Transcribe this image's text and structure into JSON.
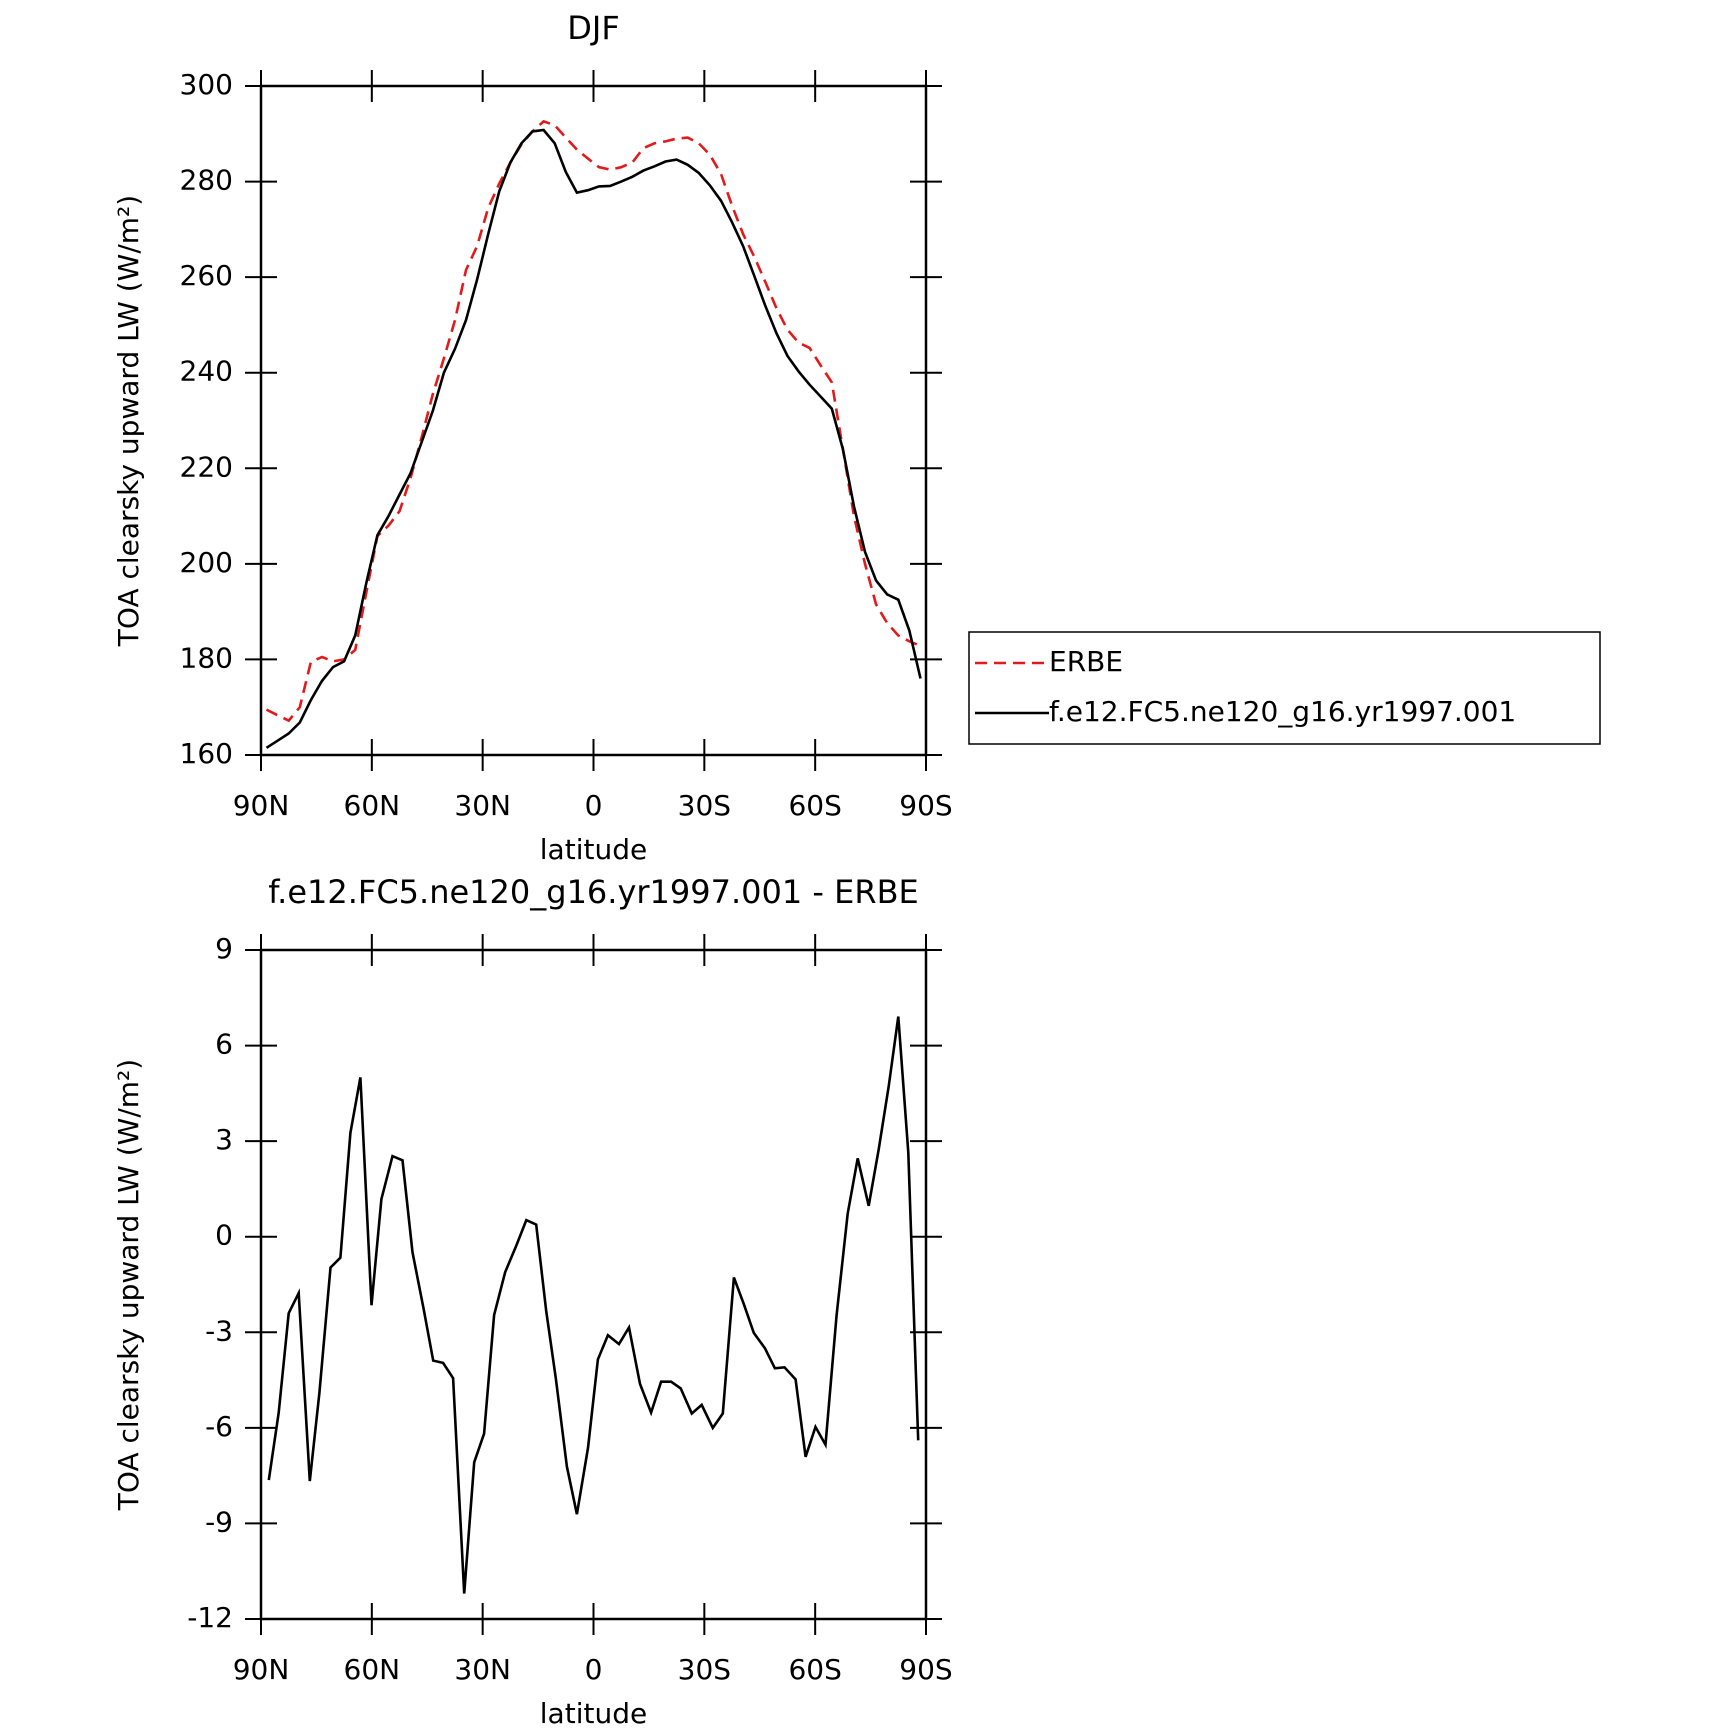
{
  "chart_data": [
    {
      "type": "line",
      "title": "DJF",
      "xlabel": "latitude",
      "ylabel": "TOA clearsky upward LW (W/m²)",
      "x": [
        88.5,
        85.5,
        82.5,
        79.5,
        76.5,
        73.5,
        70.5,
        67.5,
        64.5,
        61.5,
        58.5,
        55.5,
        52.5,
        49.5,
        46.5,
        43.5,
        40.5,
        37.5,
        34.5,
        31.5,
        28.5,
        25.5,
        22.5,
        19.5,
        16.5,
        13.5,
        10.5,
        7.5,
        4.5,
        1.5,
        -1.5,
        -4.5,
        -7.5,
        -10.5,
        -13.5,
        -16.5,
        -19.5,
        -22.5,
        -25.5,
        -28.5,
        -31.5,
        -34.5,
        -37.5,
        -40.5,
        -43.5,
        -46.5,
        -49.5,
        -52.5,
        -55.5,
        -58.5,
        -61.5,
        -64.5,
        -67.5,
        -70.5,
        -73.5,
        -76.5,
        -79.5,
        -82.5,
        -85.5,
        -88.5
      ],
      "series": [
        {
          "name": "ERBE",
          "color": "#e31a1c",
          "dashed": true,
          "values": [
            169.5,
            168.3,
            167.2,
            170,
            179.5,
            180.5,
            179.6,
            180,
            182,
            194,
            205.8,
            208,
            211,
            218,
            226.5,
            235.5,
            243,
            251,
            261.5,
            266.5,
            274.5,
            279.6,
            284,
            287.8,
            290.5,
            292.6,
            291.8,
            289.2,
            286.7,
            284.8,
            283,
            282.5,
            283,
            284,
            287,
            288,
            288.4,
            289,
            289.2,
            288,
            285.6,
            281.6,
            275,
            269,
            264.3,
            259,
            253.5,
            249,
            246.3,
            245.2,
            241.5,
            238,
            224,
            210,
            200,
            191.5,
            187.6,
            185,
            183.8,
            182.8
          ]
        },
        {
          "name": "f.e12.FC5.ne120_g16.yr1997.001",
          "color": "#000000",
          "dashed": false,
          "values": [
            161.5,
            163,
            164.5,
            166.8,
            171.5,
            175.5,
            178.4,
            179.6,
            185,
            196,
            206,
            210,
            214.5,
            219,
            225.5,
            232,
            240,
            245,
            251,
            259.5,
            269,
            278,
            284,
            288,
            290.5,
            290.8,
            288,
            282,
            277.7,
            278.2,
            279,
            279.1,
            280,
            281,
            282.3,
            283.2,
            284.2,
            284.6,
            283.5,
            281.8,
            279.2,
            276,
            271.5,
            266.5,
            260.3,
            254,
            248.3,
            243.5,
            240.3,
            237.5,
            235,
            232.5,
            224,
            212,
            202.5,
            196.5,
            193.6,
            192.5,
            186,
            176
          ]
        }
      ],
      "xlim": [
        90,
        -90
      ],
      "ylim": [
        160,
        300
      ],
      "xticks": [
        {
          "value": 90,
          "label": "90N"
        },
        {
          "value": 60,
          "label": "60N"
        },
        {
          "value": 30,
          "label": "30N"
        },
        0,
        {
          "value": -30,
          "label": "30S"
        },
        {
          "value": -60,
          "label": "60S"
        },
        {
          "value": -90,
          "label": "90S"
        }
      ],
      "yticks": [
        160,
        180,
        200,
        220,
        240,
        260,
        280,
        300
      ],
      "legend": "right"
    },
    {
      "type": "line",
      "title": "f.e12.FC5.ne120_g16.yr1997.001 - ERBE",
      "xlabel": "latitude",
      "ylabel": "TOA clearsky upward LW (W/m²)",
      "x": [
        87.9,
        85.2,
        82.5,
        79.8,
        76.8,
        74.2,
        71.2,
        68.5,
        65.8,
        63.1,
        60.1,
        57.4,
        54.4,
        51.7,
        49.0,
        46.0,
        43.4,
        40.7,
        38.0,
        35.0,
        32.3,
        29.6,
        26.9,
        23.9,
        20.9,
        18.2,
        15.5,
        12.8,
        10.2,
        7.2,
        4.5,
        1.5,
        -1.2,
        -3.9,
        -6.9,
        -9.6,
        -12.6,
        -15.6,
        -18.3,
        -21.0,
        -23.6,
        -26.6,
        -29.3,
        -32.3,
        -35.0,
        -38.0,
        -40.7,
        -43.4,
        -46.4,
        -49.1,
        -51.7,
        -54.7,
        -57.4,
        -60.1,
        -62.8,
        -65.8,
        -68.8,
        -71.5,
        -74.5,
        -77.2,
        -79.9,
        -82.5,
        -85.2,
        -87.9
      ],
      "series": [
        {
          "color": "#000000",
          "dashed": false,
          "values": [
            -7.64,
            -5.52,
            -2.4,
            -1.77,
            -7.67,
            -4.9,
            -0.97,
            -0.66,
            3.26,
            5.0,
            -2.15,
            1.18,
            2.53,
            2.4,
            -0.49,
            -2.26,
            -3.89,
            -3.96,
            -4.44,
            -11.2,
            -7.08,
            -6.18,
            -2.46,
            -1.11,
            -0.28,
            0.52,
            0.38,
            -2.33,
            -4.44,
            -7.22,
            -8.71,
            -6.63,
            -3.85,
            -3.09,
            -3.37,
            -2.85,
            -4.62,
            -5.52,
            -4.55,
            -4.55,
            -4.76,
            -5.55,
            -5.28,
            -6.0,
            -5.55,
            -1.28,
            -2.12,
            -3.02,
            -3.5,
            -4.13,
            -4.1,
            -4.48,
            -6.91,
            -5.97,
            -6.53,
            -2.46,
            0.73,
            2.46,
            0.97,
            2.74,
            4.72,
            6.91,
            2.64,
            -6.39
          ]
        }
      ],
      "xlim": [
        90,
        -90
      ],
      "ylim": [
        -12,
        9
      ],
      "xticks": [
        {
          "value": 90,
          "label": "90N"
        },
        {
          "value": 60,
          "label": "60N"
        },
        {
          "value": 30,
          "label": "30N"
        },
        0,
        {
          "value": -30,
          "label": "30S"
        },
        {
          "value": -60,
          "label": "60S"
        },
        {
          "value": -90,
          "label": "90S"
        }
      ],
      "yticks": [
        -12,
        -9,
        -6,
        -3,
        0,
        3,
        6,
        9
      ]
    }
  ]
}
